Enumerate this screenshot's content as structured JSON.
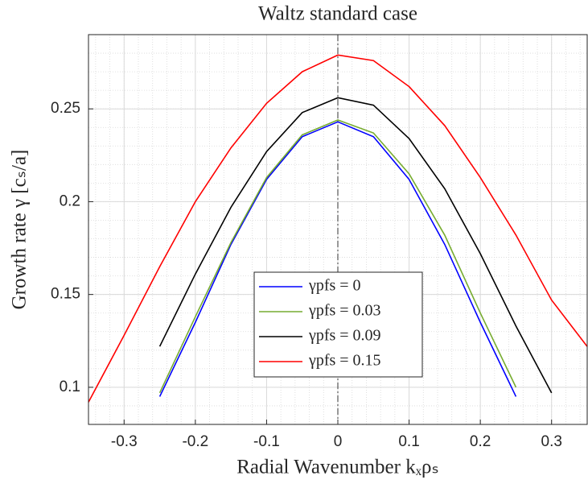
{
  "chart_data": {
    "type": "line",
    "title": "Waltz standard case",
    "xlabel": "Radial Wavenumber kₓρₛ",
    "ylabel": "Growth rate γ [cₛ/a]",
    "x": [
      -0.35,
      -0.3,
      -0.25,
      -0.2,
      -0.15,
      -0.1,
      -0.05,
      0,
      0.05,
      0.1,
      0.15,
      0.2,
      0.25,
      0.3,
      0.35
    ],
    "series": [
      {
        "name": "γpfs = 0",
        "color": "#0000ff",
        "values": [
          null,
          null,
          0.095,
          0.135,
          0.177,
          0.212,
          0.235,
          0.243,
          0.235,
          0.212,
          0.177,
          0.135,
          0.095,
          null,
          null
        ]
      },
      {
        "name": "γpfs = 0.03",
        "color": "#77ac30",
        "values": [
          null,
          null,
          0.097,
          0.138,
          0.178,
          0.213,
          0.236,
          0.244,
          0.237,
          0.215,
          0.182,
          0.14,
          0.1,
          null,
          null
        ]
      },
      {
        "name": "γpfs = 0.09",
        "color": "#000000",
        "values": [
          null,
          null,
          0.122,
          0.161,
          0.197,
          0.227,
          0.248,
          0.256,
          0.252,
          0.234,
          0.207,
          0.172,
          0.133,
          0.097,
          null
        ]
      },
      {
        "name": "γpfs = 0.15",
        "color": "#ff0000",
        "values": [
          0.092,
          0.128,
          0.165,
          0.2,
          0.229,
          0.253,
          0.27,
          0.279,
          0.276,
          0.262,
          0.241,
          0.213,
          0.182,
          0.147,
          0.122
        ]
      }
    ],
    "xlim": [
      -0.35,
      0.35
    ],
    "ylim": [
      0.08,
      0.29
    ],
    "xticks": [
      -0.3,
      -0.2,
      -0.1,
      0,
      0.1,
      0.2,
      0.3
    ],
    "yticks": [
      0.1,
      0.15,
      0.2,
      0.25
    ],
    "grid": true,
    "minor_grid": true,
    "vline": 0,
    "legend": "bottom-center"
  }
}
